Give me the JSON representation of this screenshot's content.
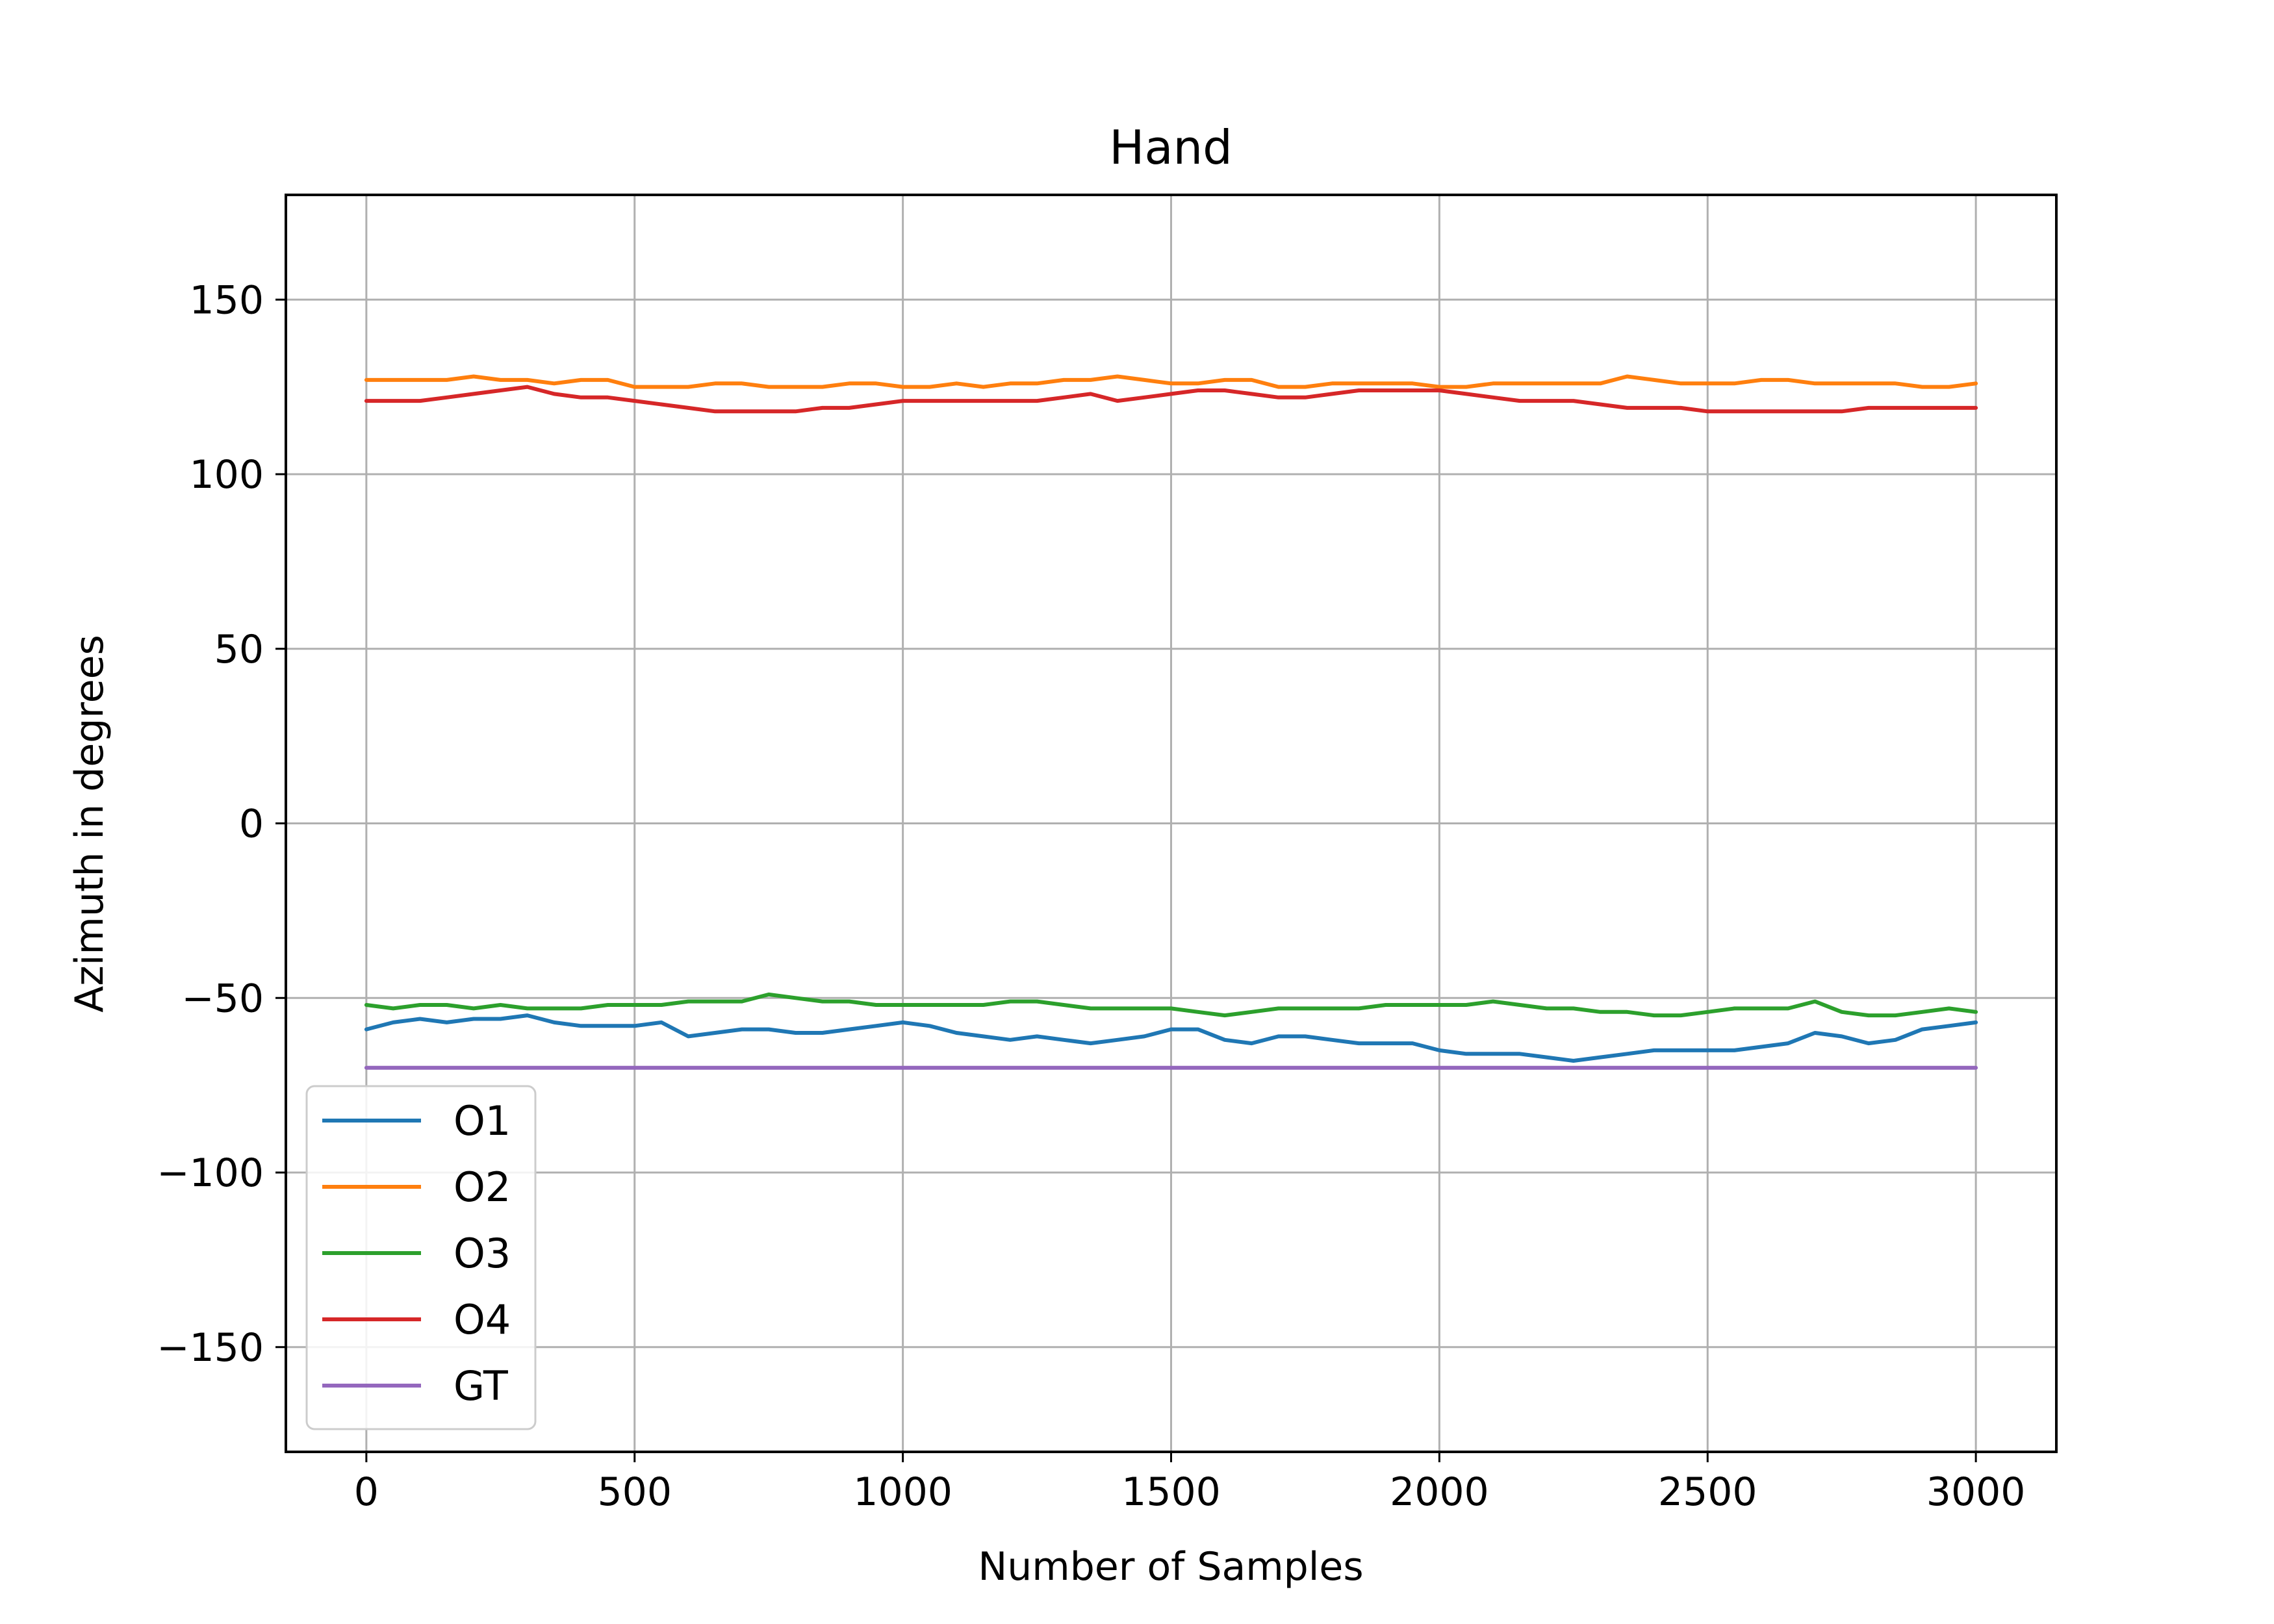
{
  "chart_data": {
    "type": "line",
    "title": "Hand",
    "xlabel": "Number of Samples",
    "ylabel": "Azimuth in degrees",
    "xlim": [
      -150,
      3150
    ],
    "ylim": [
      -180,
      180
    ],
    "xticks": [
      0,
      500,
      1000,
      1500,
      2000,
      2500,
      3000
    ],
    "yticks": [
      150,
      100,
      50,
      0,
      -50,
      -100,
      -150
    ],
    "xtick_labels": [
      "0",
      "500",
      "1000",
      "1500",
      "2000",
      "2500",
      "3000"
    ],
    "ytick_labels": [
      "150",
      "100",
      "50",
      "0",
      "−50",
      "−100",
      "−150"
    ],
    "grid": true,
    "legend_position": "lower-left",
    "x": [
      0,
      50,
      100,
      150,
      200,
      250,
      300,
      350,
      400,
      450,
      500,
      550,
      600,
      650,
      700,
      750,
      800,
      850,
      900,
      950,
      1000,
      1050,
      1100,
      1150,
      1200,
      1250,
      1300,
      1350,
      1400,
      1450,
      1500,
      1550,
      1600,
      1650,
      1700,
      1750,
      1800,
      1850,
      1900,
      1950,
      2000,
      2050,
      2100,
      2150,
      2200,
      2250,
      2300,
      2350,
      2400,
      2450,
      2500,
      2550,
      2600,
      2650,
      2700,
      2750,
      2800,
      2850,
      2900,
      2950,
      3000
    ],
    "series": [
      {
        "name": "O1",
        "color": "#1f77b4",
        "values": [
          -59,
          -57,
          -56,
          -57,
          -56,
          -56,
          -55,
          -57,
          -58,
          -58,
          -58,
          -57,
          -61,
          -60,
          -59,
          -59,
          -60,
          -60,
          -59,
          -58,
          -57,
          -58,
          -60,
          -61,
          -62,
          -61,
          -62,
          -63,
          -62,
          -61,
          -59,
          -59,
          -62,
          -63,
          -61,
          -61,
          -62,
          -63,
          -63,
          -63,
          -65,
          -66,
          -66,
          -66,
          -67,
          -68,
          -67,
          -66,
          -65,
          -65,
          -65,
          -65,
          -64,
          -63,
          -60,
          -61,
          -63,
          -62,
          -59,
          -58,
          -57
        ]
      },
      {
        "name": "O2",
        "color": "#ff7f0e",
        "values": [
          127,
          127,
          127,
          127,
          128,
          127,
          127,
          126,
          127,
          127,
          125,
          125,
          125,
          126,
          126,
          125,
          125,
          125,
          126,
          126,
          125,
          125,
          126,
          125,
          126,
          126,
          127,
          127,
          128,
          127,
          126,
          126,
          127,
          127,
          125,
          125,
          126,
          126,
          126,
          126,
          125,
          125,
          126,
          126,
          126,
          126,
          126,
          128,
          127,
          126,
          126,
          126,
          127,
          127,
          126,
          126,
          126,
          126,
          125,
          125,
          126
        ]
      },
      {
        "name": "O3",
        "color": "#2ca02c",
        "values": [
          -52,
          -53,
          -52,
          -52,
          -53,
          -52,
          -53,
          -53,
          -53,
          -52,
          -52,
          -52,
          -51,
          -51,
          -51,
          -49,
          -50,
          -51,
          -51,
          -52,
          -52,
          -52,
          -52,
          -52,
          -51,
          -51,
          -52,
          -53,
          -53,
          -53,
          -53,
          -54,
          -55,
          -54,
          -53,
          -53,
          -53,
          -53,
          -52,
          -52,
          -52,
          -52,
          -51,
          -52,
          -53,
          -53,
          -54,
          -54,
          -55,
          -55,
          -54,
          -53,
          -53,
          -53,
          -51,
          -54,
          -55,
          -55,
          -54,
          -53,
          -54
        ]
      },
      {
        "name": "O4",
        "color": "#d62728",
        "values": [
          121,
          121,
          121,
          122,
          123,
          124,
          125,
          123,
          122,
          122,
          121,
          120,
          119,
          118,
          118,
          118,
          118,
          119,
          119,
          120,
          121,
          121,
          121,
          121,
          121,
          121,
          122,
          123,
          121,
          122,
          123,
          124,
          124,
          123,
          122,
          122,
          123,
          124,
          124,
          124,
          124,
          123,
          122,
          121,
          121,
          121,
          120,
          119,
          119,
          119,
          118,
          118,
          118,
          118,
          118,
          118,
          119,
          119,
          119,
          119,
          119
        ]
      },
      {
        "name": "GT",
        "color": "#9467bd",
        "values": [
          -70,
          -70,
          -70,
          -70,
          -70,
          -70,
          -70,
          -70,
          -70,
          -70,
          -70,
          -70,
          -70,
          -70,
          -70,
          -70,
          -70,
          -70,
          -70,
          -70,
          -70,
          -70,
          -70,
          -70,
          -70,
          -70,
          -70,
          -70,
          -70,
          -70,
          -70,
          -70,
          -70,
          -70,
          -70,
          -70,
          -70,
          -70,
          -70,
          -70,
          -70,
          -70,
          -70,
          -70,
          -70,
          -70,
          -70,
          -70,
          -70,
          -70,
          -70,
          -70,
          -70,
          -70,
          -70,
          -70,
          -70,
          -70,
          -70,
          -70,
          -70
        ]
      }
    ]
  }
}
